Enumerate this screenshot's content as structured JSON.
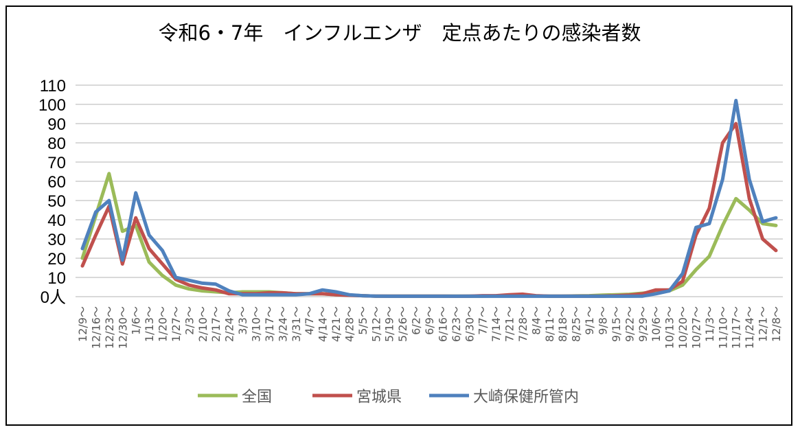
{
  "chart_data": {
    "type": "line",
    "title": "令和6・7年　インフルエンザ　定点あたりの感染者数",
    "xlabel": "",
    "ylabel": "",
    "y_unit": "人",
    "ylim": [
      0,
      110
    ],
    "yticks": [
      0,
      10,
      20,
      30,
      40,
      50,
      60,
      70,
      80,
      90,
      100,
      110
    ],
    "grid": true,
    "legend_position": "bottom",
    "categories": [
      "12/9～",
      "12/16～",
      "12/23～",
      "12/30～",
      "1/6～",
      "1/13～",
      "1/20～",
      "1/27～",
      "2/3～",
      "2/10～",
      "2/17～",
      "2/24～",
      "3/3～",
      "3/10～",
      "3/17～",
      "3/24～",
      "3/31～",
      "4/7～",
      "4/14～",
      "4/21～",
      "4/28～",
      "5/5～",
      "5/12～",
      "5/19～",
      "5/26～",
      "6/2～",
      "6/9～",
      "6/16～",
      "6/23～",
      "6/30～",
      "7/7～",
      "7/14～",
      "7/21～",
      "7/28～",
      "8/4～",
      "8/11～",
      "8/18～",
      "8/25～",
      "9/1～",
      "9/8～",
      "9/15～",
      "9/22～",
      "9/29～",
      "10/6～",
      "10/13～",
      "10/20～",
      "10/27～",
      "11/3～",
      "11/10～",
      "11/17～",
      "11/24～",
      "12/1～",
      "12/8～"
    ],
    "series": [
      {
        "name": "全国",
        "color": "#9BBB59",
        "values": [
          20,
          42,
          64,
          34,
          37,
          18,
          11,
          6,
          4,
          3,
          2.5,
          2,
          2.5,
          2.5,
          2.5,
          2,
          1.5,
          1.5,
          1.5,
          1,
          0.8,
          0.5,
          0.3,
          0.3,
          0.3,
          0.3,
          0.3,
          0.3,
          0.3,
          0.3,
          0.3,
          0.4,
          0.5,
          0.5,
          0.4,
          0.3,
          0.3,
          0.4,
          0.5,
          0.8,
          1,
          1.2,
          1.8,
          2.5,
          3,
          6,
          14,
          21,
          37,
          51,
          45,
          38,
          37
        ]
      },
      {
        "name": "宮城県",
        "color": "#C0504D",
        "values": [
          16,
          32,
          47,
          17,
          41,
          25,
          17,
          9,
          6,
          4.5,
          3.5,
          1.5,
          1.5,
          1.5,
          2,
          2,
          1.5,
          1.5,
          1.5,
          1,
          0.7,
          0.5,
          0.3,
          0.3,
          0.3,
          0.3,
          0.3,
          0.3,
          0.2,
          0.3,
          0.5,
          0.5,
          1,
          1.3,
          0.5,
          0.3,
          0.3,
          0.3,
          0.3,
          0.3,
          0.5,
          0.8,
          1.5,
          3.5,
          3.5,
          8,
          32,
          46,
          80,
          90,
          51,
          30,
          24
        ]
      },
      {
        "name": "大崎保健所管内",
        "color": "#4F81BD",
        "values": [
          25,
          44,
          50,
          19,
          54,
          32,
          24,
          10,
          8.5,
          7,
          6.5,
          3,
          1,
          1,
          1,
          1,
          1,
          1.5,
          3.5,
          2.5,
          1,
          0.5,
          0.3,
          0.2,
          0.2,
          0.2,
          0.2,
          0.2,
          0.2,
          0.2,
          0.2,
          0.2,
          0.2,
          0.2,
          0.2,
          0.2,
          0.2,
          0.2,
          0.2,
          0.2,
          0.2,
          0.2,
          0.3,
          1.5,
          3,
          12,
          36,
          38,
          61,
          102,
          61,
          39,
          41
        ]
      }
    ]
  }
}
